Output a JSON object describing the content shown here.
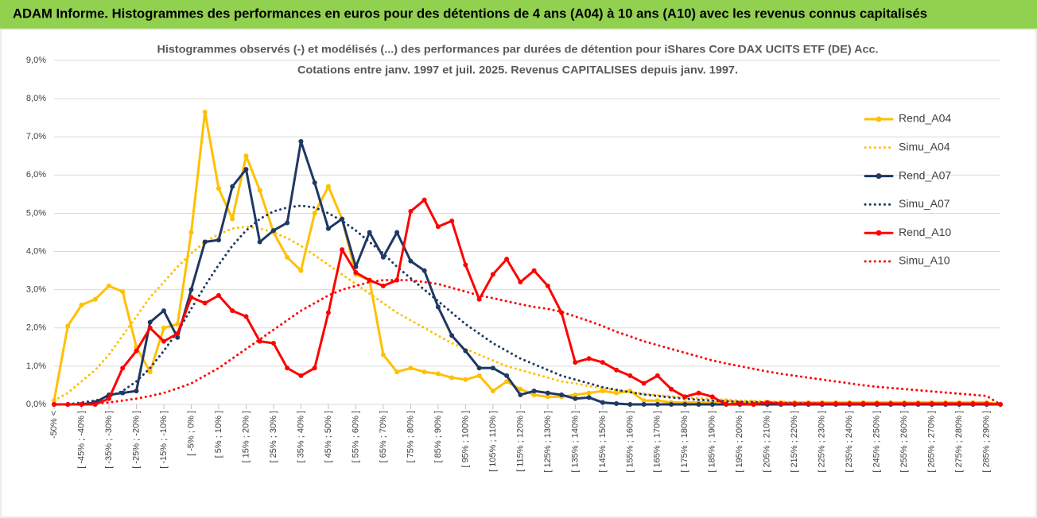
{
  "header": {
    "title": "ADAM Informe. Histogrammes des performances en euros pour des détentions de 4 ans (A04) à 10 ans (A10) avec les revenus connus capitalisés"
  },
  "chart_data": {
    "type": "line",
    "title": "Histogrammes observés (-) et modélisés (...) des performances par durées de détention pour iShares Core DAX UCITS ETF (DE) Acc.",
    "subtitle": "Cotations entre janv. 1997 et juil. 2025. Revenus CAPITALISES depuis janv. 1997.",
    "categories": [
      "-50% <",
      null,
      "[ -45% ; -40% ]",
      null,
      "[ -35% ; -30% ]",
      null,
      "[ -25% ; -20% ]",
      null,
      "[ -15% ; -10% ]",
      null,
      "[ -5% ; 0% ]",
      null,
      "[ 5% ; 10% ]",
      null,
      "[ 15% ; 20% ]",
      null,
      "[ 25% ; 30% ]",
      null,
      "[ 35% ; 40% ]",
      null,
      "[ 45% ; 50% ]",
      null,
      "[ 55% ; 60% ]",
      null,
      "[ 65% ; 70% ]",
      null,
      "[ 75% ; 80% ]",
      null,
      "[ 85% ; 90% ]",
      null,
      "[ 95% ; 100% ]",
      null,
      "[ 105% ; 110% ]",
      null,
      "[ 115% ; 120% ]",
      null,
      "[ 125% ; 130% ]",
      null,
      "[ 135% ; 140% ]",
      null,
      "[ 145% ; 150% ]",
      null,
      "[ 155% ; 160% ]",
      null,
      "[ 165% ; 170% ]",
      null,
      "[ 175% ; 180% ]",
      null,
      "[ 185% ; 190% ]",
      null,
      "[ 195% ; 200% ]",
      null,
      "[ 205% ; 210% ]",
      null,
      "[ 215% ; 220% ]",
      null,
      "[ 225% ; 230% ]",
      null,
      "[ 235% ; 240% ]",
      null,
      "[ 245% ; 250% ]",
      null,
      "[ 255% ; 260% ]",
      null,
      "[ 265% ; 270% ]",
      null,
      "[ 275% ; 280% ]",
      null,
      "[ 285% ; 290% ]",
      null
    ],
    "series": [
      {
        "name": "Rend_A04",
        "color": "#ffc000",
        "style": "solid",
        "markers": true,
        "values": [
          0.1,
          2.05,
          2.6,
          2.75,
          3.1,
          2.95,
          1.5,
          0.85,
          2.0,
          2.1,
          4.5,
          7.65,
          5.65,
          4.85,
          6.5,
          5.6,
          4.5,
          3.85,
          3.5,
          5.0,
          5.7,
          4.85,
          3.4,
          3.25,
          1.3,
          0.85,
          0.95,
          0.85,
          0.8,
          0.7,
          0.65,
          0.75,
          0.35,
          0.6,
          0.4,
          0.25,
          0.2,
          0.2,
          0.25,
          0.3,
          0.35,
          0.3,
          0.35,
          0.1,
          0.1,
          0.05,
          0.05,
          0.05,
          0.05,
          0.1,
          0.05,
          0.05,
          0.05,
          0.05,
          0.05,
          0.05,
          0.05,
          0.05,
          0.05,
          0.05,
          0.05,
          0.05,
          0.05,
          0.05,
          0.05,
          0.05,
          0.05,
          0.05,
          0.05,
          0
        ]
      },
      {
        "name": "Simu_A04",
        "color": "#ffc000",
        "style": "dotted",
        "markers": false,
        "values": [
          0.1,
          0.3,
          0.6,
          0.9,
          1.3,
          1.8,
          2.3,
          2.8,
          3.2,
          3.6,
          3.95,
          4.25,
          4.45,
          4.6,
          4.65,
          4.6,
          4.5,
          4.35,
          4.15,
          3.9,
          3.65,
          3.4,
          3.15,
          2.9,
          2.65,
          2.4,
          2.2,
          2.0,
          1.8,
          1.6,
          1.45,
          1.3,
          1.15,
          1.0,
          0.9,
          0.8,
          0.7,
          0.6,
          0.55,
          0.48,
          0.42,
          0.37,
          0.32,
          0.28,
          0.24,
          0.21,
          0.18,
          0.16,
          0.14,
          0.12,
          0.1,
          0.09,
          0.08,
          0.07,
          0.06,
          0.05,
          0.05,
          0.04,
          0.04,
          0.03,
          0.03,
          0.03,
          0.02,
          0.02,
          0.02,
          0.02,
          0.01,
          0.01,
          0.01,
          0
        ]
      },
      {
        "name": "Rend_A07",
        "color": "#1f3864",
        "style": "solid",
        "markers": true,
        "values": [
          0,
          0,
          0,
          0.05,
          0.25,
          0.3,
          0.35,
          2.15,
          2.45,
          1.75,
          3.0,
          4.25,
          4.3,
          5.7,
          6.15,
          4.25,
          4.55,
          4.75,
          6.88,
          5.8,
          4.6,
          4.85,
          3.6,
          4.5,
          3.85,
          4.5,
          3.75,
          3.5,
          2.55,
          1.8,
          1.4,
          0.95,
          0.95,
          0.75,
          0.25,
          0.35,
          0.3,
          0.25,
          0.15,
          0.18,
          0.05,
          0.02,
          0,
          0,
          0,
          0,
          0,
          0,
          0,
          0,
          0,
          0,
          0,
          0,
          0,
          0,
          0,
          0,
          0,
          0,
          0,
          0,
          0,
          0,
          0,
          0,
          0,
          0,
          0,
          0
        ]
      },
      {
        "name": "Simu_A07",
        "color": "#1f3864",
        "style": "dotted",
        "markers": false,
        "values": [
          0,
          0,
          0.05,
          0.1,
          0.2,
          0.35,
          0.6,
          0.95,
          1.4,
          1.9,
          2.5,
          3.1,
          3.65,
          4.15,
          4.55,
          4.85,
          5.05,
          5.15,
          5.2,
          5.15,
          5.0,
          4.8,
          4.55,
          4.25,
          3.95,
          3.6,
          3.3,
          3.0,
          2.7,
          2.4,
          2.1,
          1.85,
          1.6,
          1.4,
          1.2,
          1.05,
          0.9,
          0.75,
          0.65,
          0.55,
          0.45,
          0.38,
          0.32,
          0.26,
          0.22,
          0.18,
          0.15,
          0.12,
          0.1,
          0.08,
          0.07,
          0.06,
          0.05,
          0.04,
          0.03,
          0.03,
          0.02,
          0.02,
          0.02,
          0.01,
          0.01,
          0.01,
          0.01,
          0.01,
          0,
          0,
          0,
          0,
          0,
          0
        ]
      },
      {
        "name": "Rend_A10",
        "color": "#ff0000",
        "style": "solid",
        "markers": true,
        "values": [
          0,
          0,
          0,
          0,
          0.15,
          0.95,
          1.4,
          2.0,
          1.65,
          1.85,
          2.8,
          2.65,
          2.85,
          2.45,
          2.3,
          1.65,
          1.6,
          0.95,
          0.75,
          0.95,
          2.4,
          4.05,
          3.45,
          3.25,
          3.1,
          3.25,
          5.05,
          5.35,
          4.65,
          4.8,
          3.65,
          2.75,
          3.4,
          3.8,
          3.2,
          3.5,
          3.1,
          2.4,
          1.1,
          1.2,
          1.1,
          0.9,
          0.75,
          0.55,
          0.75,
          0.4,
          0.2,
          0.3,
          0.2,
          0,
          0.02,
          0,
          0.05,
          0.02,
          0.02,
          0.02,
          0.02,
          0.02,
          0.02,
          0.02,
          0.02,
          0.02,
          0.02,
          0.02,
          0.02,
          0.02,
          0.02,
          0.02,
          0.02,
          0
        ]
      },
      {
        "name": "Simu_A10",
        "color": "#ff0000",
        "style": "dotted",
        "markers": false,
        "values": [
          0,
          0,
          0,
          0.02,
          0.05,
          0.1,
          0.15,
          0.22,
          0.3,
          0.42,
          0.55,
          0.75,
          0.95,
          1.2,
          1.45,
          1.7,
          1.95,
          2.2,
          2.45,
          2.65,
          2.85,
          3.0,
          3.1,
          3.2,
          3.25,
          3.25,
          3.25,
          3.2,
          3.15,
          3.05,
          2.95,
          2.85,
          2.78,
          2.7,
          2.62,
          2.55,
          2.5,
          2.42,
          2.3,
          2.18,
          2.05,
          1.9,
          1.78,
          1.65,
          1.55,
          1.45,
          1.35,
          1.25,
          1.15,
          1.07,
          1.0,
          0.93,
          0.86,
          0.8,
          0.75,
          0.7,
          0.65,
          0.6,
          0.55,
          0.5,
          0.46,
          0.43,
          0.4,
          0.37,
          0.34,
          0.31,
          0.28,
          0.25,
          0.22,
          0
        ]
      }
    ],
    "ylim": [
      0,
      9
    ],
    "yticks": [
      {
        "value": 0,
        "label": "0,0%"
      },
      {
        "value": 1,
        "label": "1,0%"
      },
      {
        "value": 2,
        "label": "2,0%"
      },
      {
        "value": 3,
        "label": "3,0%"
      },
      {
        "value": 4,
        "label": "4,0%"
      },
      {
        "value": 5,
        "label": "5,0%"
      },
      {
        "value": 6,
        "label": "6,0%"
      },
      {
        "value": 7,
        "label": "7,0%"
      },
      {
        "value": 8,
        "label": "8,0%"
      },
      {
        "value": 9,
        "label": "9,0%"
      }
    ],
    "grid": true,
    "legend": "right"
  }
}
